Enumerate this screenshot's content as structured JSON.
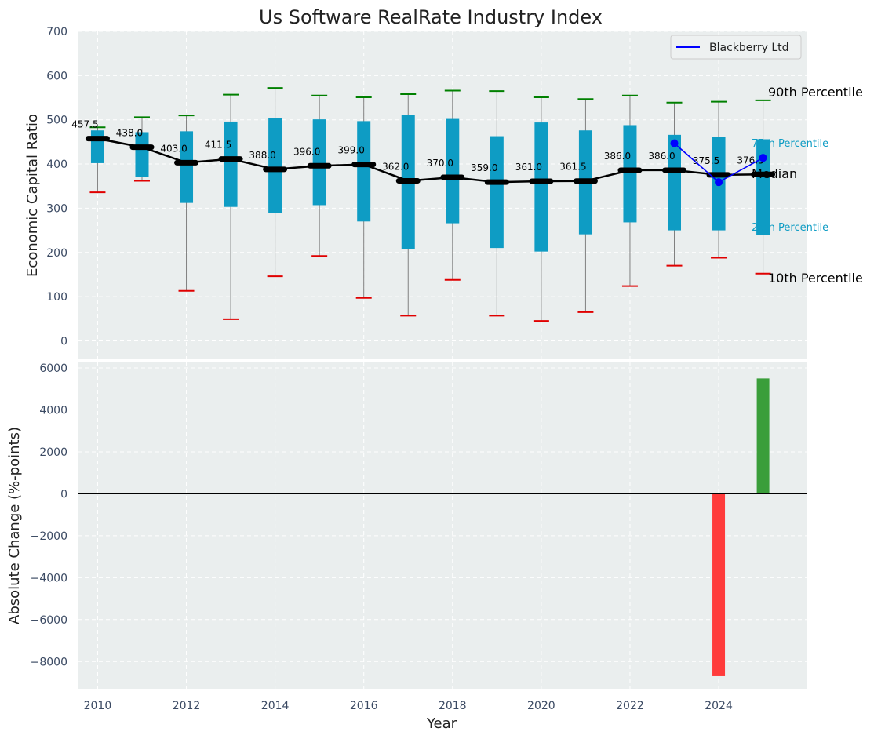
{
  "chart_data": [
    {
      "type": "box",
      "title": "Us Software RealRate Industry Index",
      "ylabel": "Economic Capital Ratio",
      "ylim": [
        -40,
        700
      ],
      "yticks": [
        0,
        100,
        200,
        300,
        400,
        500,
        600,
        700
      ],
      "x": [
        2010,
        2011,
        2012,
        2013,
        2014,
        2015,
        2016,
        2017,
        2018,
        2019,
        2020,
        2021,
        2022,
        2023,
        2024,
        2025
      ],
      "p10": [
        336,
        362,
        113,
        49,
        146,
        192,
        97,
        57,
        138,
        57,
        45,
        65,
        124,
        170,
        188,
        152
      ],
      "p25": [
        402,
        370,
        312,
        303,
        289,
        307,
        270,
        207,
        266,
        210,
        202,
        241,
        268,
        250,
        250,
        240
      ],
      "median": [
        457.5,
        438.0,
        403.0,
        411.5,
        388.0,
        396.0,
        399.0,
        362.0,
        370.0,
        359.0,
        361.0,
        361.5,
        386.0,
        386.0,
        375.5,
        376.5
      ],
      "median_labels": [
        "457.5",
        "438.0",
        "403.0",
        "411.5",
        "388.0",
        "396.0",
        "399.0",
        "362.0",
        "370.0",
        "359.0",
        "361.0",
        "361.5",
        "386.0",
        "386.0",
        "375.5",
        "376.5"
      ],
      "p75": [
        476,
        472,
        474,
        496,
        503,
        501,
        497,
        511,
        502,
        463,
        494,
        476,
        488,
        466,
        461,
        456
      ],
      "p90": [
        483,
        506,
        510,
        557,
        572,
        555,
        551,
        558,
        566,
        565,
        551,
        547,
        555,
        539,
        541,
        544
      ],
      "series": [
        {
          "name": "Blackberry Ltd",
          "x": [
            2023,
            2024,
            2025
          ],
          "values": [
            447,
            359,
            414
          ]
        }
      ],
      "annotations": {
        "p90": "90th Percentile",
        "p75": "75th Percentile",
        "median": "Median",
        "p25": "25th Percentile",
        "p10": "10th Percentile"
      },
      "legend": "top-right",
      "grid": true,
      "colors": {
        "box": "#0e9cc4",
        "median": "#000000",
        "p90_cap": "#008000",
        "p10_cap": "#e00000",
        "whisker": "#808080",
        "series": "#0000ff"
      }
    },
    {
      "type": "bar",
      "ylabel": "Absolute Change (%-points)",
      "xlabel": "Year",
      "ylim": [
        -9300,
        6300
      ],
      "yticks": [
        -8000,
        -6000,
        -4000,
        -2000,
        0,
        2000,
        4000,
        6000
      ],
      "ytick_labels": [
        "−8000",
        "−6000",
        "−4000",
        "−2000",
        "0",
        "2000",
        "4000",
        "6000"
      ],
      "xticks": [
        2010,
        2012,
        2014,
        2016,
        2018,
        2020,
        2022,
        2024
      ],
      "xticklabels": [
        "2010",
        "2012",
        "2014",
        "2016",
        "2018",
        "2020",
        "2022",
        "2024"
      ],
      "x": [
        2024,
        2025
      ],
      "values": [
        -8700,
        5500
      ],
      "grid": true,
      "colors": {
        "positive": "#3a9e3a",
        "negative": "#ff3b3b"
      }
    }
  ]
}
